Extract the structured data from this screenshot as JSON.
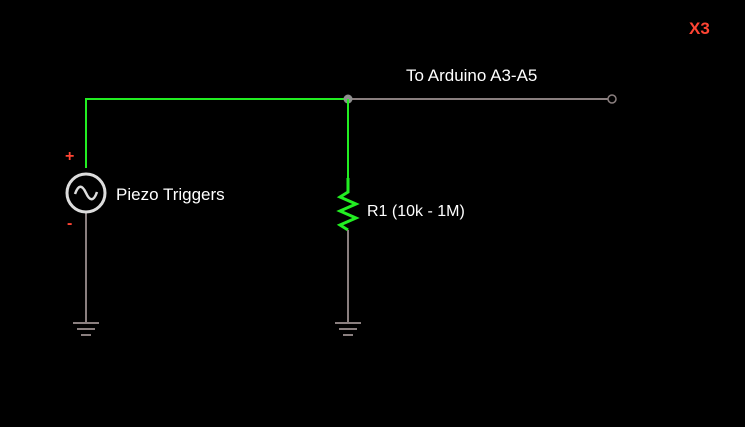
{
  "diagram": {
    "multiplier": "X3",
    "output_label": "To Arduino A3-A5",
    "source_label": "Piezo Triggers",
    "resistor_label": "R1 (10k - 1M)",
    "plus_sign": "+",
    "minus_sign": "-"
  },
  "colors": {
    "background": "#000000",
    "active_wire": "#22ee22",
    "idle_wire": "#8a7f7f",
    "node": "#8f8f8f",
    "accent": "#ff4433",
    "text": "#ffffff"
  },
  "icons": {
    "source": "ac-source-icon",
    "resistor": "resistor-icon",
    "ground": "ground-icon",
    "terminal": "terminal-icon",
    "junction": "junction-node-icon"
  }
}
